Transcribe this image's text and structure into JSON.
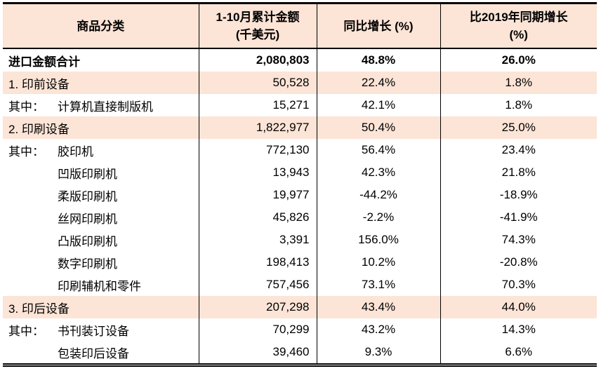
{
  "colors": {
    "highlight_bg": "#fce4d6",
    "border": "#000000",
    "text": "#000000"
  },
  "table": {
    "header": {
      "category": "商品分类",
      "amount_line1": "1-10月累计金额",
      "amount_line2": "(千美元)",
      "yoy": "同比增长 (%)",
      "vs2019_line1": "比2019年同期增长",
      "vs2019_line2": "(%)"
    },
    "rows": [
      {
        "prefix": "",
        "name": "进口金额合计",
        "amount": "2,080,803",
        "yoy": "48.8%",
        "vs2019": "26.0%"
      },
      {
        "prefix": "",
        "name": "1. 印前设备",
        "amount": "50,528",
        "yoy": "22.4%",
        "vs2019": "1.8%"
      },
      {
        "prefix": "其中：",
        "name": "计算机直接制版机",
        "amount": "15,271",
        "yoy": "42.1%",
        "vs2019": "1.8%"
      },
      {
        "prefix": "",
        "name": "2. 印刷设备",
        "amount": "1,822,977",
        "yoy": "50.4%",
        "vs2019": "25.0%"
      },
      {
        "prefix": "其中：",
        "name": "胶印机",
        "amount": "772,130",
        "yoy": "56.4%",
        "vs2019": "23.4%"
      },
      {
        "prefix": "",
        "name": "凹版印刷机",
        "amount": "13,943",
        "yoy": "42.3%",
        "vs2019": "21.8%"
      },
      {
        "prefix": "",
        "name": "柔版印刷机",
        "amount": "19,977",
        "yoy": "-44.2%",
        "vs2019": "-18.9%"
      },
      {
        "prefix": "",
        "name": "丝网印刷机",
        "amount": "45,826",
        "yoy": "-2.2%",
        "vs2019": "-41.9%"
      },
      {
        "prefix": "",
        "name": "凸版印刷机",
        "amount": "3,391",
        "yoy": "156.0%",
        "vs2019": "74.3%"
      },
      {
        "prefix": "",
        "name": "数字印刷机",
        "amount": "198,413",
        "yoy": "10.2%",
        "vs2019": "-20.8%"
      },
      {
        "prefix": "",
        "name": "印刷辅机和零件",
        "amount": "757,456",
        "yoy": "73.1%",
        "vs2019": "70.3%"
      },
      {
        "prefix": "",
        "name": "3. 印后设备",
        "amount": "207,298",
        "yoy": "43.4%",
        "vs2019": "44.0%"
      },
      {
        "prefix": "其中：",
        "name": "书刊装订设备",
        "amount": "70,299",
        "yoy": "43.2%",
        "vs2019": "14.3%"
      },
      {
        "prefix": "",
        "name": "包装印后设备",
        "amount": "39,460",
        "yoy": "9.3%",
        "vs2019": "6.6%"
      }
    ]
  }
}
